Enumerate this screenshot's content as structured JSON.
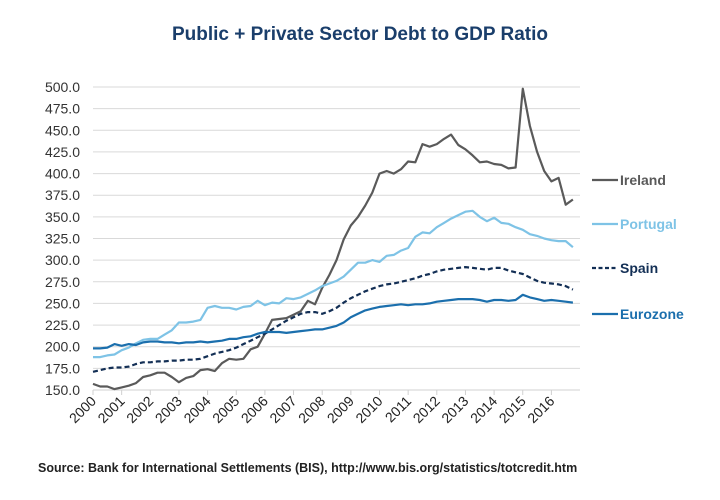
{
  "chart_data": {
    "type": "line",
    "title": "Public + Private Sector Debt to GDP Ratio",
    "xlabel": "",
    "ylabel": "",
    "ylim": [
      150,
      500
    ],
    "yticks": [
      "500.0",
      "475.0",
      "450.0",
      "425.0",
      "400.0",
      "375.0",
      "350.0",
      "325.0",
      "300.0",
      "275.0",
      "250.0",
      "225.0",
      "200.0",
      "175.0",
      "150.0"
    ],
    "xticks": [
      "2000",
      "2001",
      "2002",
      "2003",
      "2004",
      "2005",
      "2006",
      "2007",
      "2008",
      "2009",
      "2010",
      "2011",
      "2012",
      "2013",
      "2014",
      "2015",
      "2016"
    ],
    "x_start": 2000,
    "x_step": 0.25,
    "grid": true,
    "legend_position": "right (inline labels)",
    "series": [
      {
        "name": "Ireland",
        "color": "#5a5a5a",
        "dashed": false,
        "values": [
          157,
          154,
          154,
          151,
          153,
          155,
          158,
          165,
          167,
          170,
          170,
          165,
          159,
          164,
          166,
          173,
          174,
          172,
          181,
          186,
          185,
          186,
          197,
          200,
          215,
          231,
          232,
          233,
          237,
          241,
          253,
          249,
          268,
          283,
          300,
          324,
          340,
          350,
          363,
          378,
          400,
          403,
          400,
          405,
          414,
          413,
          434,
          431,
          434,
          440,
          445,
          433,
          428,
          421,
          413,
          414,
          411,
          410,
          406,
          407,
          498,
          455,
          425,
          403,
          391,
          395,
          364,
          370
        ]
      },
      {
        "name": "Portugal",
        "color": "#7ec3e6",
        "dashed": false,
        "values": [
          188,
          188,
          190,
          191,
          196,
          199,
          204,
          208,
          209,
          209,
          214,
          219,
          228,
          228,
          229,
          231,
          245,
          247,
          245,
          245,
          243,
          246,
          247,
          253,
          248,
          251,
          250,
          256,
          255,
          257,
          261,
          265,
          270,
          273,
          276,
          281,
          289,
          297,
          297,
          300,
          298,
          305,
          306,
          311,
          314,
          327,
          332,
          331,
          338,
          343,
          348,
          352,
          356,
          357,
          350,
          345,
          349,
          343,
          342,
          338,
          335,
          330,
          328,
          325,
          323,
          322,
          322,
          315
        ]
      },
      {
        "name": "Spain",
        "color": "#132f55",
        "dashed": true,
        "values": [
          171,
          173,
          175,
          176,
          176,
          177,
          180,
          182,
          182,
          183,
          183,
          184,
          184,
          185,
          185,
          186,
          189,
          192,
          194,
          196,
          199,
          203,
          207,
          211,
          215,
          220,
          225,
          230,
          234,
          238,
          240,
          240,
          238,
          241,
          245,
          251,
          256,
          260,
          264,
          267,
          270,
          272,
          273,
          275,
          277,
          279,
          282,
          284,
          287,
          289,
          290,
          291,
          292,
          291,
          290,
          289,
          291,
          291,
          288,
          286,
          284,
          280,
          276,
          274,
          273,
          272,
          270,
          266
        ]
      },
      {
        "name": "Eurozone",
        "color": "#1b6fad",
        "dashed": false,
        "values": [
          198,
          198,
          199,
          203,
          201,
          203,
          202,
          205,
          206,
          206,
          205,
          205,
          204,
          205,
          205,
          206,
          205,
          206,
          207,
          209,
          209,
          211,
          212,
          215,
          217,
          217,
          217,
          216,
          217,
          218,
          219,
          220,
          220,
          222,
          224,
          228,
          234,
          238,
          242,
          244,
          246,
          247,
          248,
          249,
          248,
          249,
          249,
          250,
          252,
          253,
          254,
          255,
          255,
          255,
          254,
          252,
          254,
          254,
          253,
          254,
          260,
          257,
          255,
          253,
          254,
          253,
          252,
          251
        ]
      }
    ]
  },
  "source": "Source: Bank for International Settlements (BIS), http://www.bis.org/statistics/totcredit.htm"
}
